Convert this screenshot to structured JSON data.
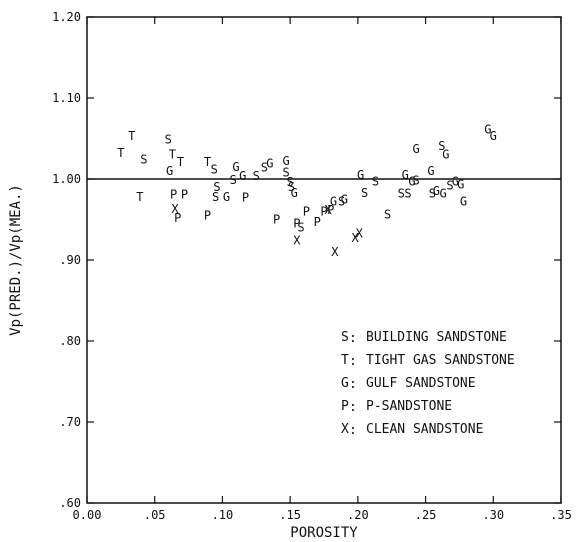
{
  "chart_data": {
    "type": "scatter",
    "title": "",
    "xlabel": "POROSITY",
    "ylabel": "Vp(PRED.)/Vp(MEA.)",
    "xlim": [
      0.0,
      0.35
    ],
    "ylim": [
      0.6,
      1.2
    ],
    "x_ticks": [
      0.0,
      0.05,
      0.1,
      0.15,
      0.2,
      0.25,
      0.3,
      0.35
    ],
    "x_tick_labels": [
      "0.00",
      ".05",
      ".10",
      ".15",
      ".20",
      ".25",
      ".30",
      ".35"
    ],
    "y_ticks": [
      0.6,
      0.7,
      0.8,
      0.9,
      1.0,
      1.1,
      1.2
    ],
    "y_tick_labels": [
      ".60",
      ".70",
      ".80",
      ".90",
      "1.00",
      "1.10",
      "1.20"
    ],
    "reference_line": {
      "y": 1.0
    },
    "grid": false,
    "legend_position": "lower-right",
    "legend": [
      {
        "symbol": "S",
        "label": "BUILDING SANDSTONE"
      },
      {
        "symbol": "T",
        "label": "TIGHT GAS SANDSTONE"
      },
      {
        "symbol": "G",
        "label": "GULF SANDSTONE"
      },
      {
        "symbol": "P",
        "label": "P-SANDSTONE"
      },
      {
        "symbol": "X",
        "label": "CLEAN SANDSTONE"
      }
    ],
    "series": [
      {
        "symbol": "S",
        "label": "BUILDING SANDSTONE",
        "points": [
          [
            0.042,
            1.024
          ],
          [
            0.06,
            1.049
          ],
          [
            0.094,
            1.012
          ],
          [
            0.096,
            0.99
          ],
          [
            0.095,
            0.978
          ],
          [
            0.108,
            0.999
          ],
          [
            0.125,
            1.004
          ],
          [
            0.131,
            1.014
          ],
          [
            0.147,
            1.008
          ],
          [
            0.15,
            0.996
          ],
          [
            0.151,
            0.99
          ],
          [
            0.158,
            0.94
          ],
          [
            0.188,
            0.972
          ],
          [
            0.205,
            0.983
          ],
          [
            0.213,
            0.997
          ],
          [
            0.222,
            0.956
          ],
          [
            0.232,
            0.982
          ],
          [
            0.237,
            0.982
          ],
          [
            0.243,
            0.998
          ],
          [
            0.255,
            0.982
          ],
          [
            0.262,
            1.041
          ],
          [
            0.268,
            0.992
          ]
        ]
      },
      {
        "symbol": "T",
        "label": "TIGHT GAS SANDSTONE",
        "points": [
          [
            0.025,
            1.032
          ],
          [
            0.033,
            1.053
          ],
          [
            0.039,
            0.978
          ],
          [
            0.063,
            1.03
          ],
          [
            0.069,
            1.021
          ],
          [
            0.089,
            1.021
          ]
        ]
      },
      {
        "symbol": "G",
        "label": "GULF SANDSTONE",
        "points": [
          [
            0.061,
            1.01
          ],
          [
            0.103,
            0.978
          ],
          [
            0.11,
            1.015
          ],
          [
            0.115,
            1.004
          ],
          [
            0.135,
            1.019
          ],
          [
            0.147,
            1.022
          ],
          [
            0.153,
            0.983
          ],
          [
            0.182,
            0.972
          ],
          [
            0.19,
            0.975
          ],
          [
            0.202,
            1.005
          ],
          [
            0.235,
            1.005
          ],
          [
            0.24,
            0.997
          ],
          [
            0.243,
            1.037
          ],
          [
            0.254,
            1.01
          ],
          [
            0.258,
            0.985
          ],
          [
            0.263,
            0.982
          ],
          [
            0.265,
            1.03
          ],
          [
            0.272,
            0.997
          ],
          [
            0.276,
            0.993
          ],
          [
            0.278,
            0.972
          ],
          [
            0.296,
            1.061
          ],
          [
            0.3,
            1.053
          ]
        ]
      },
      {
        "symbol": "P",
        "label": "P-SANDSTONE",
        "points": [
          [
            0.064,
            0.981
          ],
          [
            0.067,
            0.952
          ],
          [
            0.072,
            0.981
          ],
          [
            0.089,
            0.955
          ],
          [
            0.117,
            0.977
          ],
          [
            0.14,
            0.95
          ],
          [
            0.155,
            0.945
          ],
          [
            0.162,
            0.96
          ],
          [
            0.17,
            0.947
          ],
          [
            0.175,
            0.96
          ],
          [
            0.18,
            0.962
          ]
        ]
      },
      {
        "symbol": "X",
        "label": "CLEAN SANDSTONE",
        "points": [
          [
            0.065,
            0.963
          ],
          [
            0.155,
            0.924
          ],
          [
            0.178,
            0.962
          ],
          [
            0.183,
            0.91
          ],
          [
            0.198,
            0.927
          ],
          [
            0.201,
            0.933
          ]
        ]
      }
    ]
  }
}
